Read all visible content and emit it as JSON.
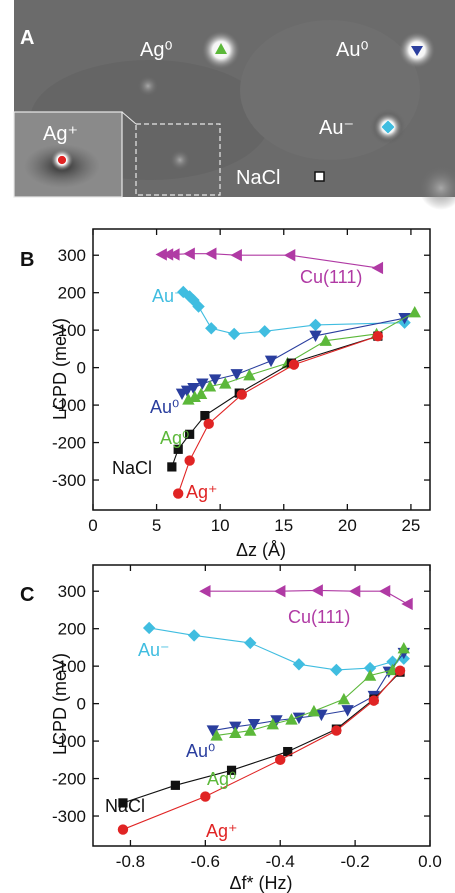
{
  "panel_a": {
    "letter": "A",
    "labels": {
      "ag0": "Ag⁰",
      "au0": "Au⁰",
      "au_minus": "Au⁻",
      "ag_plus": "Ag⁺",
      "nacl": "NaCl"
    }
  },
  "colors": {
    "cu111": "#b03aa4",
    "au_minus": "#40bde0",
    "au0": "#2a3e9e",
    "ag0": "#5cb83a",
    "nacl": "#111111",
    "ag_plus": "#e02424"
  },
  "chart_data": [
    {
      "type": "scatter",
      "panel": "B",
      "xlabel": "Δz (Å)",
      "ylabel": "LCPD (meV)",
      "xlim": [
        0,
        26.5
      ],
      "ylim": [
        -380,
        370
      ],
      "xticks": [
        0,
        5,
        10,
        15,
        20,
        25
      ],
      "yticks": [
        300,
        200,
        100,
        0,
        -100,
        -200,
        -300
      ],
      "series": [
        {
          "name": "Cu(111)",
          "key": "cu111",
          "marker": "triangle-left",
          "points": [
            [
              5.4,
              302
            ],
            [
              5.9,
              302
            ],
            [
              6.4,
              302
            ],
            [
              7.6,
              304
            ],
            [
              9.3,
              304
            ],
            [
              11.3,
              300
            ],
            [
              15.5,
              300
            ],
            [
              22.4,
              266
            ]
          ]
        },
        {
          "name": "Au⁻",
          "key": "au_minus",
          "marker": "diamond",
          "points": [
            [
              7.1,
              202
            ],
            [
              7.6,
              190
            ],
            [
              7.9,
              180
            ],
            [
              8.3,
              163
            ],
            [
              9.3,
              105
            ],
            [
              11.1,
              90
            ],
            [
              13.5,
              97
            ],
            [
              17.5,
              114
            ],
            [
              24.5,
              120
            ]
          ]
        },
        {
          "name": "Au⁰",
          "key": "au0",
          "marker": "triangle-down",
          "points": [
            [
              7.0,
              -70
            ],
            [
              7.4,
              -62
            ],
            [
              7.9,
              -55
            ],
            [
              8.6,
              -43
            ],
            [
              9.6,
              -32
            ],
            [
              11.3,
              -18
            ],
            [
              14.0,
              18
            ],
            [
              17.5,
              85
            ],
            [
              24.5,
              132
            ]
          ]
        },
        {
          "name": "Ag⁰",
          "key": "ag0",
          "marker": "triangle-up",
          "points": [
            [
              7.5,
              -85
            ],
            [
              8.0,
              -78
            ],
            [
              8.5,
              -70
            ],
            [
              9.2,
              -50
            ],
            [
              10.4,
              -42
            ],
            [
              12.3,
              -20
            ],
            [
              15.3,
              12
            ],
            [
              18.3,
              72
            ],
            [
              22.3,
              90
            ],
            [
              25.3,
              148
            ]
          ]
        },
        {
          "name": "NaCl",
          "key": "nacl",
          "marker": "square",
          "points": [
            [
              6.2,
              -265
            ],
            [
              6.7,
              -218
            ],
            [
              7.6,
              -178
            ],
            [
              8.8,
              -128
            ],
            [
              11.5,
              -68
            ],
            [
              15.6,
              12
            ],
            [
              22.4,
              84
            ]
          ]
        },
        {
          "name": "Ag⁺",
          "key": "ag_plus",
          "marker": "circle",
          "points": [
            [
              6.7,
              -336
            ],
            [
              7.6,
              -248
            ],
            [
              9.1,
              -150
            ],
            [
              11.7,
              -72
            ],
            [
              15.8,
              8
            ],
            [
              22.4,
              84
            ]
          ]
        }
      ]
    },
    {
      "type": "scatter",
      "panel": "C",
      "xlabel": "Δf* (Hz)",
      "ylabel": "LCPD (meV)",
      "xlim": [
        -0.9,
        0.0
      ],
      "ylim": [
        -380,
        370
      ],
      "xticks": [
        -0.8,
        -0.6,
        -0.4,
        -0.2,
        0.0
      ],
      "xticklabels": [
        "-0.8",
        "-0.6",
        "-0.4",
        "-0.2",
        "0.0"
      ],
      "yticks": [
        300,
        200,
        100,
        0,
        -100,
        -200,
        -300
      ],
      "series": [
        {
          "name": "Cu(111)",
          "key": "cu111",
          "marker": "triangle-left",
          "points": [
            [
              -0.6,
              300
            ],
            [
              -0.4,
              300
            ],
            [
              -0.3,
              302
            ],
            [
              -0.2,
              300
            ],
            [
              -0.12,
              300
            ],
            [
              -0.06,
              266
            ]
          ]
        },
        {
          "name": "Au⁻",
          "key": "au_minus",
          "marker": "diamond",
          "points": [
            [
              -0.75,
              202
            ],
            [
              -0.63,
              182
            ],
            [
              -0.48,
              162
            ],
            [
              -0.35,
              105
            ],
            [
              -0.25,
              90
            ],
            [
              -0.16,
              95
            ],
            [
              -0.1,
              112
            ],
            [
              -0.07,
              120
            ]
          ]
        },
        {
          "name": "Au⁰",
          "key": "au0",
          "marker": "triangle-down",
          "points": [
            [
              -0.58,
              -72
            ],
            [
              -0.52,
              -62
            ],
            [
              -0.47,
              -55
            ],
            [
              -0.41,
              -45
            ],
            [
              -0.35,
              -38
            ],
            [
              -0.29,
              -30
            ],
            [
              -0.22,
              -18
            ],
            [
              -0.15,
              20
            ],
            [
              -0.11,
              85
            ],
            [
              -0.07,
              135
            ]
          ]
        },
        {
          "name": "Ag⁰",
          "key": "ag0",
          "marker": "triangle-up",
          "points": [
            [
              -0.57,
              -85
            ],
            [
              -0.52,
              -78
            ],
            [
              -0.48,
              -72
            ],
            [
              -0.42,
              -55
            ],
            [
              -0.37,
              -42
            ],
            [
              -0.31,
              -20
            ],
            [
              -0.23,
              12
            ],
            [
              -0.16,
              75
            ],
            [
              -0.1,
              90
            ],
            [
              -0.07,
              148
            ]
          ]
        },
        {
          "name": "NaCl",
          "key": "nacl",
          "marker": "square",
          "points": [
            [
              -0.82,
              -265
            ],
            [
              -0.68,
              -218
            ],
            [
              -0.53,
              -178
            ],
            [
              -0.38,
              -128
            ],
            [
              -0.25,
              -68
            ],
            [
              -0.15,
              12
            ],
            [
              -0.08,
              84
            ]
          ]
        },
        {
          "name": "Ag⁺",
          "key": "ag_plus",
          "marker": "circle",
          "points": [
            [
              -0.82,
              -336
            ],
            [
              -0.6,
              -248
            ],
            [
              -0.4,
              -150
            ],
            [
              -0.25,
              -72
            ],
            [
              -0.15,
              8
            ],
            [
              -0.08,
              88
            ]
          ]
        }
      ]
    }
  ],
  "panel_b": {
    "letter": "B",
    "labels": {
      "cu111": "Cu(111)",
      "au_minus": "Au⁻",
      "au0": "Au⁰",
      "ag0": "Ag⁰",
      "nacl": "NaCl",
      "ag_plus": "Ag⁺"
    }
  },
  "panel_c": {
    "letter": "C",
    "labels": {
      "cu111": "Cu(111)",
      "au_minus": "Au⁻",
      "au0": "Au⁰",
      "ag0": "Ag⁰",
      "nacl": "NaCl",
      "ag_plus": "Ag⁺"
    }
  }
}
